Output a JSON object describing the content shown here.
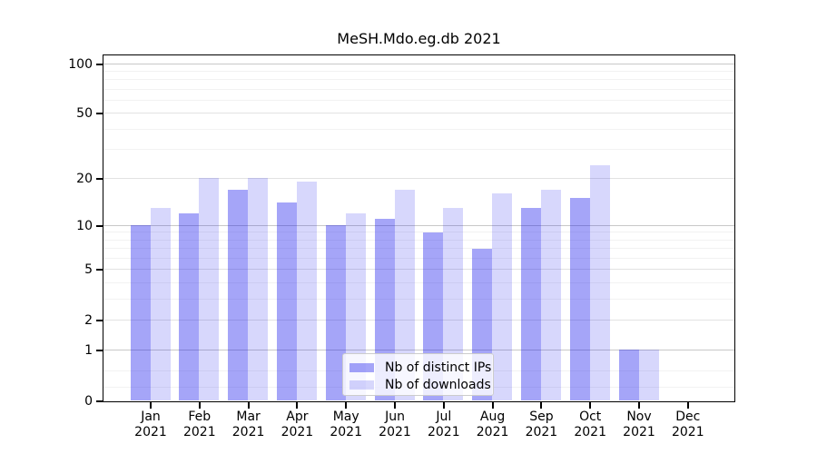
{
  "figure": {
    "title": "MeSH.Mdo.eg.db 2021",
    "background_color": "#ffffff"
  },
  "chart_data": {
    "type": "bar",
    "title": "MeSH.Mdo.eg.db 2021",
    "xlabel": "",
    "ylabel": "",
    "yscale": "log1p",
    "ylim": [
      0,
      113
    ],
    "yticks": [
      0,
      1,
      2,
      5,
      10,
      20,
      50,
      100
    ],
    "minor_gridline_values": [
      0.2,
      0.5,
      3,
      4,
      6,
      7,
      8,
      9,
      30,
      40,
      60,
      70,
      80,
      90
    ],
    "grid": "on",
    "categories": [
      "Jan",
      "Feb",
      "Mar",
      "Apr",
      "May",
      "Jun",
      "Jul",
      "Aug",
      "Sep",
      "Oct",
      "Nov",
      "Dec"
    ],
    "year": "2021",
    "series": [
      {
        "name": "Nb of distinct IPs",
        "color": "rgba(10,10,235,0.37)",
        "color_hex_on_white": "#a8a8f7",
        "values": [
          10,
          12,
          17,
          14,
          10,
          11,
          9,
          7,
          13,
          15,
          1,
          0
        ]
      },
      {
        "name": "Nb of downloads",
        "color": "rgba(10,10,235,0.165)",
        "color_hex_on_white": "#d7d7fb",
        "values": [
          13,
          20,
          20,
          19,
          12,
          17,
          13,
          16,
          17,
          24,
          1,
          0
        ]
      }
    ],
    "legend_position": "lower center",
    "gridline_colors": {
      "major": "#c8c8c8",
      "labeled": "#e2e2e2",
      "minor": "#f2f2f2"
    }
  }
}
